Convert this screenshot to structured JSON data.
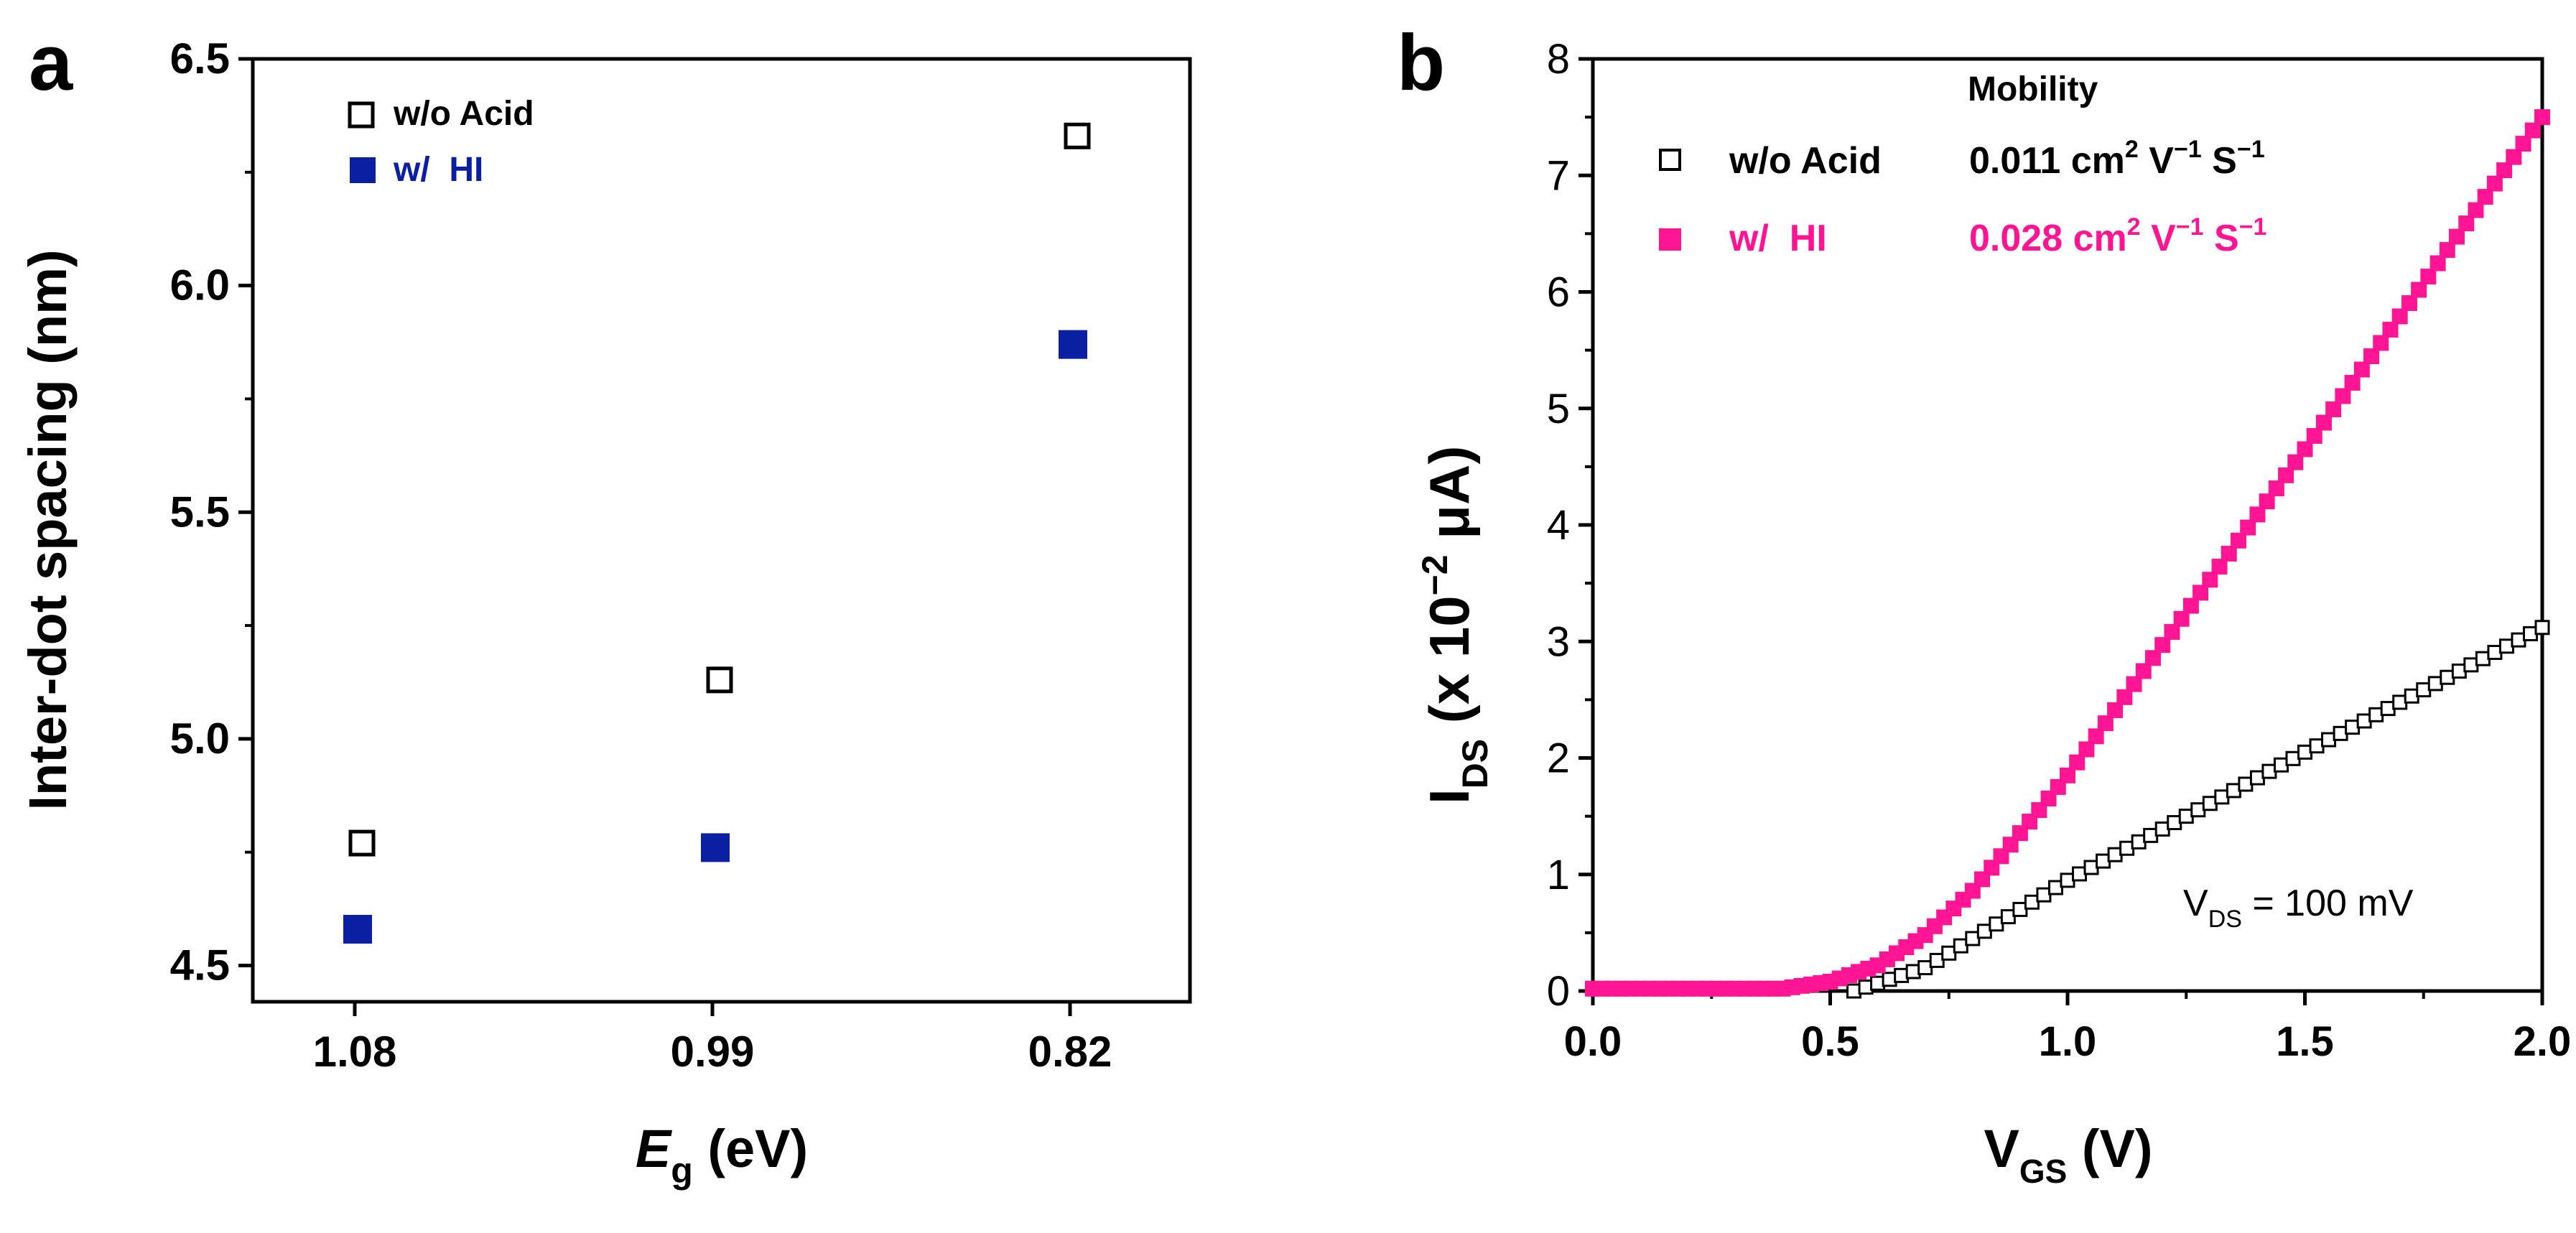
{
  "chart_data": [
    {
      "panel_label": "a",
      "type": "scatter",
      "xlabel": "E",
      "xlabel_sub": "g",
      "xlabel_unit": " (eV)",
      "ylabel": "Inter-dot spacing (nm)",
      "categories": [
        "1.08",
        "0.99",
        "0.82"
      ],
      "yticks": [
        "4.5",
        "5.0",
        "5.5",
        "6.0",
        "6.5"
      ],
      "ylim": [
        4.42,
        6.5
      ],
      "series": [
        {
          "name": "w/o Acid",
          "marker": "open-square",
          "color": "#000000",
          "values": [
            4.77,
            5.13,
            6.33
          ]
        },
        {
          "name": "w/  HI",
          "marker": "filled-square",
          "color": "#0b1fa3",
          "values": [
            4.58,
            4.76,
            5.87
          ]
        }
      ]
    },
    {
      "panel_label": "b",
      "type": "scatter",
      "xlabel": "V",
      "xlabel_sub": "GS",
      "xlabel_unit": " (V)",
      "ylabel_main": "I",
      "ylabel_sub": "DS",
      "ylabel_rest": " (x 10",
      "ylabel_sup": "−2",
      "ylabel_unit": " μA)",
      "xlim": [
        0,
        2.0
      ],
      "ylim": [
        0,
        8
      ],
      "xticks": [
        "0.0",
        "0.5",
        "1.0",
        "1.5",
        "2.0"
      ],
      "yticks": [
        "0",
        "1",
        "2",
        "3",
        "4",
        "5",
        "6",
        "7",
        "8"
      ],
      "legend_title": "Mobility",
      "annotation_main": "V",
      "annotation_sub": "DS",
      "annotation_rest": " = 100 mV",
      "series": [
        {
          "name": "w/o Acid",
          "mobility_value": "0.011 cm",
          "mobility_units": [
            "2",
            " V",
            "−1",
            " S",
            "−1"
          ],
          "marker": "open-square",
          "color": "#000000",
          "x_start": 0.55,
          "x_end": 2.0,
          "step": 0.025,
          "curve": [
            [
              0.55,
              0.0
            ],
            [
              0.7,
              0.2
            ],
            [
              1.0,
              0.95
            ],
            [
              1.5,
              2.05
            ],
            [
              2.0,
              3.12
            ]
          ]
        },
        {
          "name": "w/  HI",
          "mobility_value": "0.028 cm",
          "mobility_units": [
            "2",
            " V",
            "−1",
            " S",
            "−1"
          ],
          "marker": "filled-square",
          "color": "#ff1493",
          "x_start": 0.0,
          "x_end": 2.0,
          "step": 0.02,
          "curve": [
            [
              0.0,
              0.02
            ],
            [
              0.4,
              0.02
            ],
            [
              0.5,
              0.08
            ],
            [
              0.6,
              0.22
            ],
            [
              0.7,
              0.48
            ],
            [
              0.8,
              0.86
            ],
            [
              1.0,
              1.85
            ],
            [
              1.5,
              4.65
            ],
            [
              2.0,
              7.5
            ]
          ]
        }
      ]
    }
  ]
}
